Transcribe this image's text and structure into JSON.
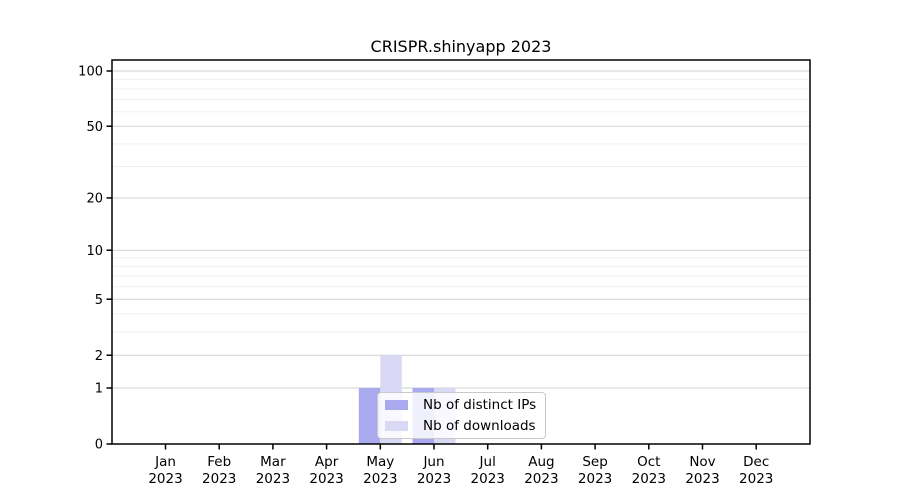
{
  "chart_data": {
    "type": "bar",
    "title": "CRISPR.shinyapp 2023",
    "xlabel": "",
    "ylabel": "",
    "categories": [
      "Jan",
      "Feb",
      "Mar",
      "Apr",
      "May",
      "Jun",
      "Jul",
      "Aug",
      "Sep",
      "Oct",
      "Nov",
      "Dec"
    ],
    "x_tick_year_label": "2023",
    "series": [
      {
        "name": "Nb of distinct IPs",
        "color": "#a9a9ef",
        "values": [
          0,
          0,
          0,
          0,
          1,
          1,
          0,
          0,
          0,
          0,
          0,
          0
        ]
      },
      {
        "name": "Nb of downloads",
        "color": "#d9d9f6",
        "values": [
          0,
          0,
          0,
          0,
          2,
          1,
          0,
          0,
          0,
          0,
          0,
          0
        ]
      }
    ],
    "y_axis": {
      "scale": "log1p",
      "ticks": [
        0,
        1,
        2,
        5,
        10,
        20,
        50,
        100
      ],
      "minor_gridlines": [
        3,
        4,
        6,
        7,
        8,
        9,
        30,
        40,
        60,
        70,
        80,
        90
      ],
      "ylim": [
        0,
        115
      ]
    },
    "grid": "horizontal",
    "legend_position": "inside-bottom-center",
    "styles": {
      "grid_major_color": "#d2d2d2",
      "grid_minor_color": "#f0f0f0",
      "axis_color": "#000000",
      "background": "#ffffff"
    }
  }
}
